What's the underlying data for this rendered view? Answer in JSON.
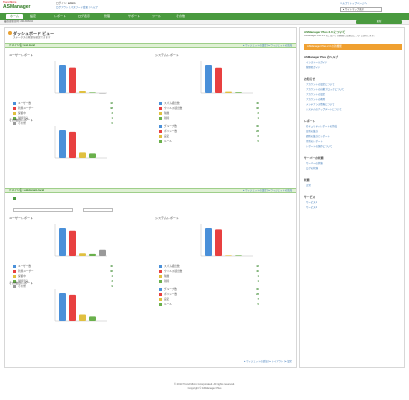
{
  "header": {
    "logo_brand": "Trend Micro",
    "logo_product": "ASManager",
    "user_label": "ログイン:",
    "user_name": "admin",
    "top_links": "ログアウト | パスワード変更 | ヘルプ",
    "right_links": "ヘルプ | トップページへ",
    "search_label": "▸ サイトマップ表示"
  },
  "nav": {
    "items": [
      "ホーム",
      "設定",
      "レポート",
      "ログ表示",
      "管理",
      "サポート",
      "ツール",
      "その他"
    ],
    "active": 0
  },
  "subbar": {
    "left": "最終更新日時: 2013/06/04",
    "right": "更新"
  },
  "dashboard": {
    "title": "ダッシュボード ビュー",
    "subtitle": "ステータスの概要を確認できます",
    "sections": [
      {
        "header": "ドメイン名: test.local",
        "links": "▸ ウィジェットの設定 | ▸ ウィジェットの追加",
        "blocks": [
          {
            "title": "ユーザーレポート",
            "legend": [
              {
                "label": "ユーザー数",
                "value": "42",
                "color": "#4a90d9"
              },
              {
                "label": "新規ユーザー",
                "value": "38",
                "color": "#e84040"
              },
              {
                "label": "保留中",
                "value": "3",
                "color": "#e0c040"
              },
              {
                "label": "削除済み",
                "value": "1",
                "color": "#6ab04c"
              },
              {
                "label": "その他",
                "value": "0",
                "color": "#999999"
              }
            ],
            "values": [
              42,
              38,
              3,
              1,
              0
            ]
          },
          {
            "title": "システムレポート",
            "legend": [
              {
                "label": "スパム検出数",
                "value": "40",
                "color": "#4a90d9"
              },
              {
                "label": "ウイルス検出数",
                "value": "36",
                "color": "#e84040"
              },
              {
                "label": "隔離",
                "value": "2",
                "color": "#e0c040"
              },
              {
                "label": "削除",
                "value": "1",
                "color": "#6ab04c"
              }
            ],
            "values": [
              40,
              36,
              2,
              1
            ]
          },
          {
            "title": "その他のレポート",
            "legend": [
              {
                "label": "グループ数",
                "value": "30",
                "color": "#4a90d9"
              },
              {
                "label": "ポリシー数",
                "value": "28",
                "color": "#e84040"
              },
              {
                "label": "設定",
                "value": "6",
                "color": "#e0c040"
              },
              {
                "label": "ルール",
                "value": "5",
                "color": "#6ab04c"
              }
            ],
            "values": [
              30,
              28,
              6,
              5
            ]
          }
        ]
      },
      {
        "header": "ドメイン名: subdomain.local",
        "links": "▸ ウィジェットの設定 | ▸ ウィジェットの追加",
        "blocks": [
          {
            "title": "ユーザーレポート",
            "legend": [
              {
                "label": "ユーザー数",
                "value": "40",
                "color": "#4a90d9"
              },
              {
                "label": "新規ユーザー",
                "value": "36",
                "color": "#e84040"
              },
              {
                "label": "保留中",
                "value": "4",
                "color": "#e0c040"
              },
              {
                "label": "削除済み",
                "value": "3",
                "color": "#6ab04c"
              },
              {
                "label": "その他",
                "value": "9",
                "color": "#999999"
              }
            ],
            "values": [
              40,
              36,
              4,
              3,
              9
            ]
          },
          {
            "title": "システムレポート",
            "legend": [
              {
                "label": "スパム検出数",
                "value": "42",
                "color": "#4a90d9"
              },
              {
                "label": "ウイルス検出数",
                "value": "40",
                "color": "#e84040"
              },
              {
                "label": "隔離",
                "value": "1",
                "color": "#e0c040"
              },
              {
                "label": "削除",
                "value": "1",
                "color": "#6ab04c"
              }
            ],
            "values": [
              42,
              40,
              1,
              1
            ]
          },
          {
            "title": "その他のレポート",
            "legend": [
              {
                "label": "グループ数",
                "value": "30",
                "color": "#4a90d9"
              },
              {
                "label": "ポリシー数",
                "value": "28",
                "color": "#e84040"
              },
              {
                "label": "設定",
                "value": "7",
                "color": "#e0c040"
              },
              {
                "label": "ルール",
                "value": "5",
                "color": "#6ab04c"
              }
            ],
            "values": [
              30,
              28,
              7,
              5
            ]
          }
        ]
      }
    ],
    "bottom_links": "▸ ウィジェットの追加 | ▸ レイアウト | ▸ 設定"
  },
  "sidebar": {
    "title": "ASManager Plus 2.0 について",
    "desc": "ASManager Plus 2.0 のご紹介。新機能と改善点について説明します。",
    "green_btn": "ASManager Plus 2.0 の新機能",
    "sections": [
      {
        "title": "ASManager Plus のヘルプ",
        "items": [
          "インストールガイド",
          "管理者ガイド"
        ]
      },
      {
        "title": "お知らせ",
        "items": [
          "アカウントの設定について",
          "アカウントの自動ブロックについて",
          "アカウントの設定",
          "アカウントの削除",
          "メンテナンス情報について",
          "システムのアップデートについて"
        ]
      },
      {
        "title": "レポート",
        "items": [
          "セキュリティレポートの作成",
          "日別の集計",
          "週別の集計とレポート",
          "月別のレポート",
          "レポートの保存について"
        ]
      },
      {
        "title": "サーバーの状態",
        "items": [
          "サーバーの状態",
          "ログの状態"
        ]
      },
      {
        "title": "状態",
        "items": [
          "正常"
        ]
      },
      {
        "title": "サービス",
        "items": [
          "サービス1",
          "サービス2"
        ]
      }
    ]
  },
  "footer": {
    "line1": "© 2013 Trend Micro Incorporated. All rights reserved.",
    "line2": "Copyright © ASManager Plus"
  }
}
